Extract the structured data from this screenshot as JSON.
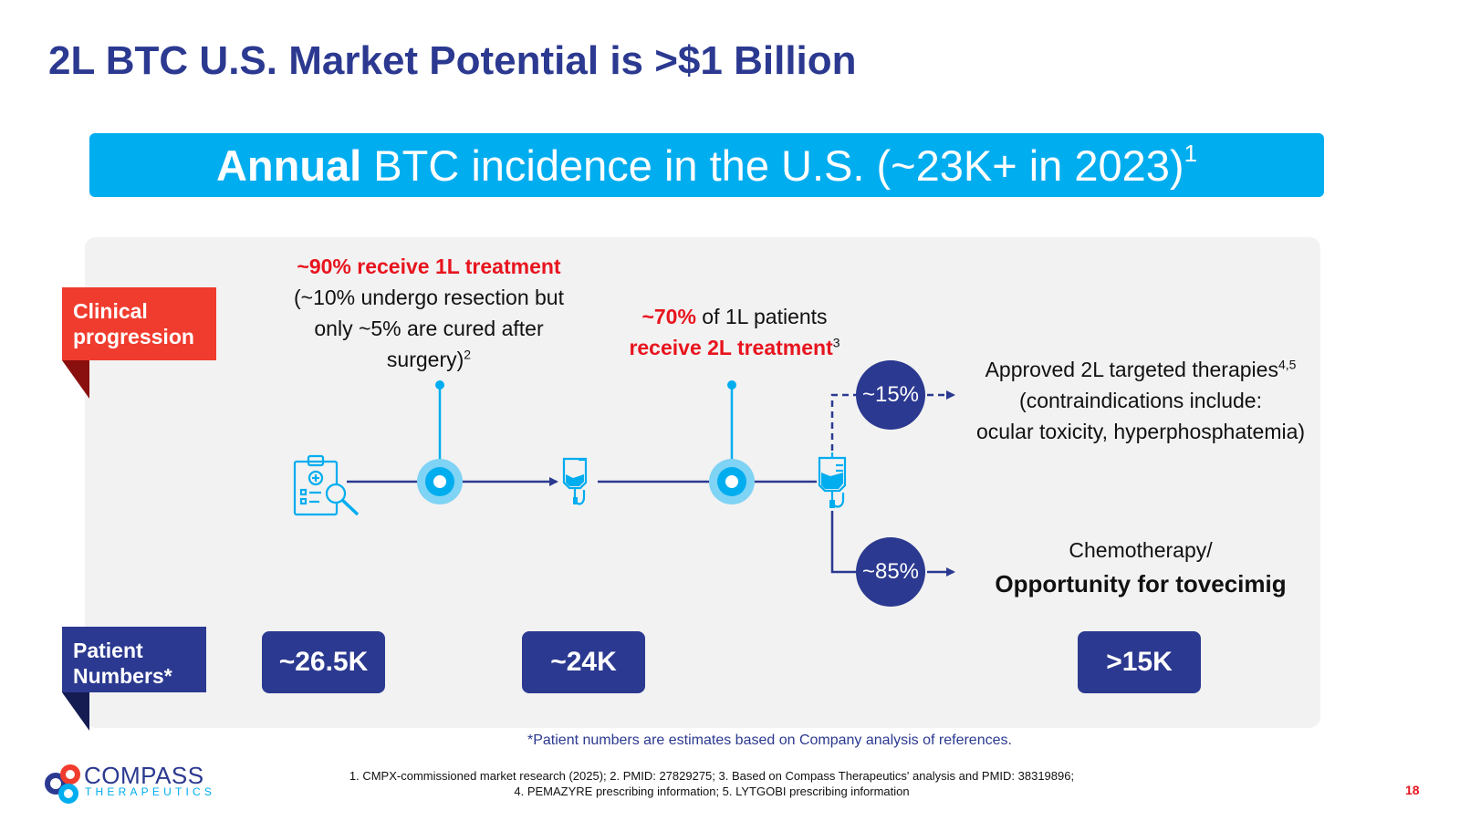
{
  "title": "2L BTC U.S. Market Potential is >$1 Billion",
  "banner": {
    "bold": "Annual",
    "rest": " BTC incidence in the U.S. (~23K+ in 2023)",
    "sup": "1"
  },
  "labels": {
    "clinical_line1": "Clinical",
    "clinical_line2": "progression",
    "patients_line1": "Patient",
    "patients_line2": "Numbers*"
  },
  "step1": {
    "headline": "~90% receive 1L treatment",
    "line1": "(~10% undergo resection but",
    "line2": "only ~5% are cured after",
    "line3": "surgery)",
    "sup": "2"
  },
  "step2": {
    "pct": "~70%",
    "rest": " of 1L patients",
    "line2": "receive 2L treatment",
    "sup": "3"
  },
  "branch_top": {
    "pct": "~15%",
    "line1": "Approved 2L targeted therapies",
    "sup": "4,5",
    "line2": "(contraindications include:",
    "line3": "ocular toxicity, hyperphosphatemia)"
  },
  "branch_bottom": {
    "pct": "~85%",
    "line1": "Chemotherapy/",
    "line2": "Opportunity for tovecimig"
  },
  "patient_numbers": [
    "~26.5K",
    "~24K",
    ">15K"
  ],
  "footnote": "*Patient numbers are estimates based on Company analysis of references.",
  "references": {
    "line1": "1. CMPX-commissioned market research (2025); 2. PMID: 27829275;  3. Based on Compass Therapeutics' analysis and PMID: 38319896;",
    "line2": "4. PEMAZYRE prescribing information;  5. LYTGOBI prescribing information"
  },
  "logo": {
    "word": "COMPASS",
    "sub": "THERAPEUTICS"
  },
  "page_number": "18",
  "colors": {
    "navy": "#2b3990",
    "cyan": "#00adef",
    "red": "#e8141e",
    "panel": "#f2f2f2"
  }
}
